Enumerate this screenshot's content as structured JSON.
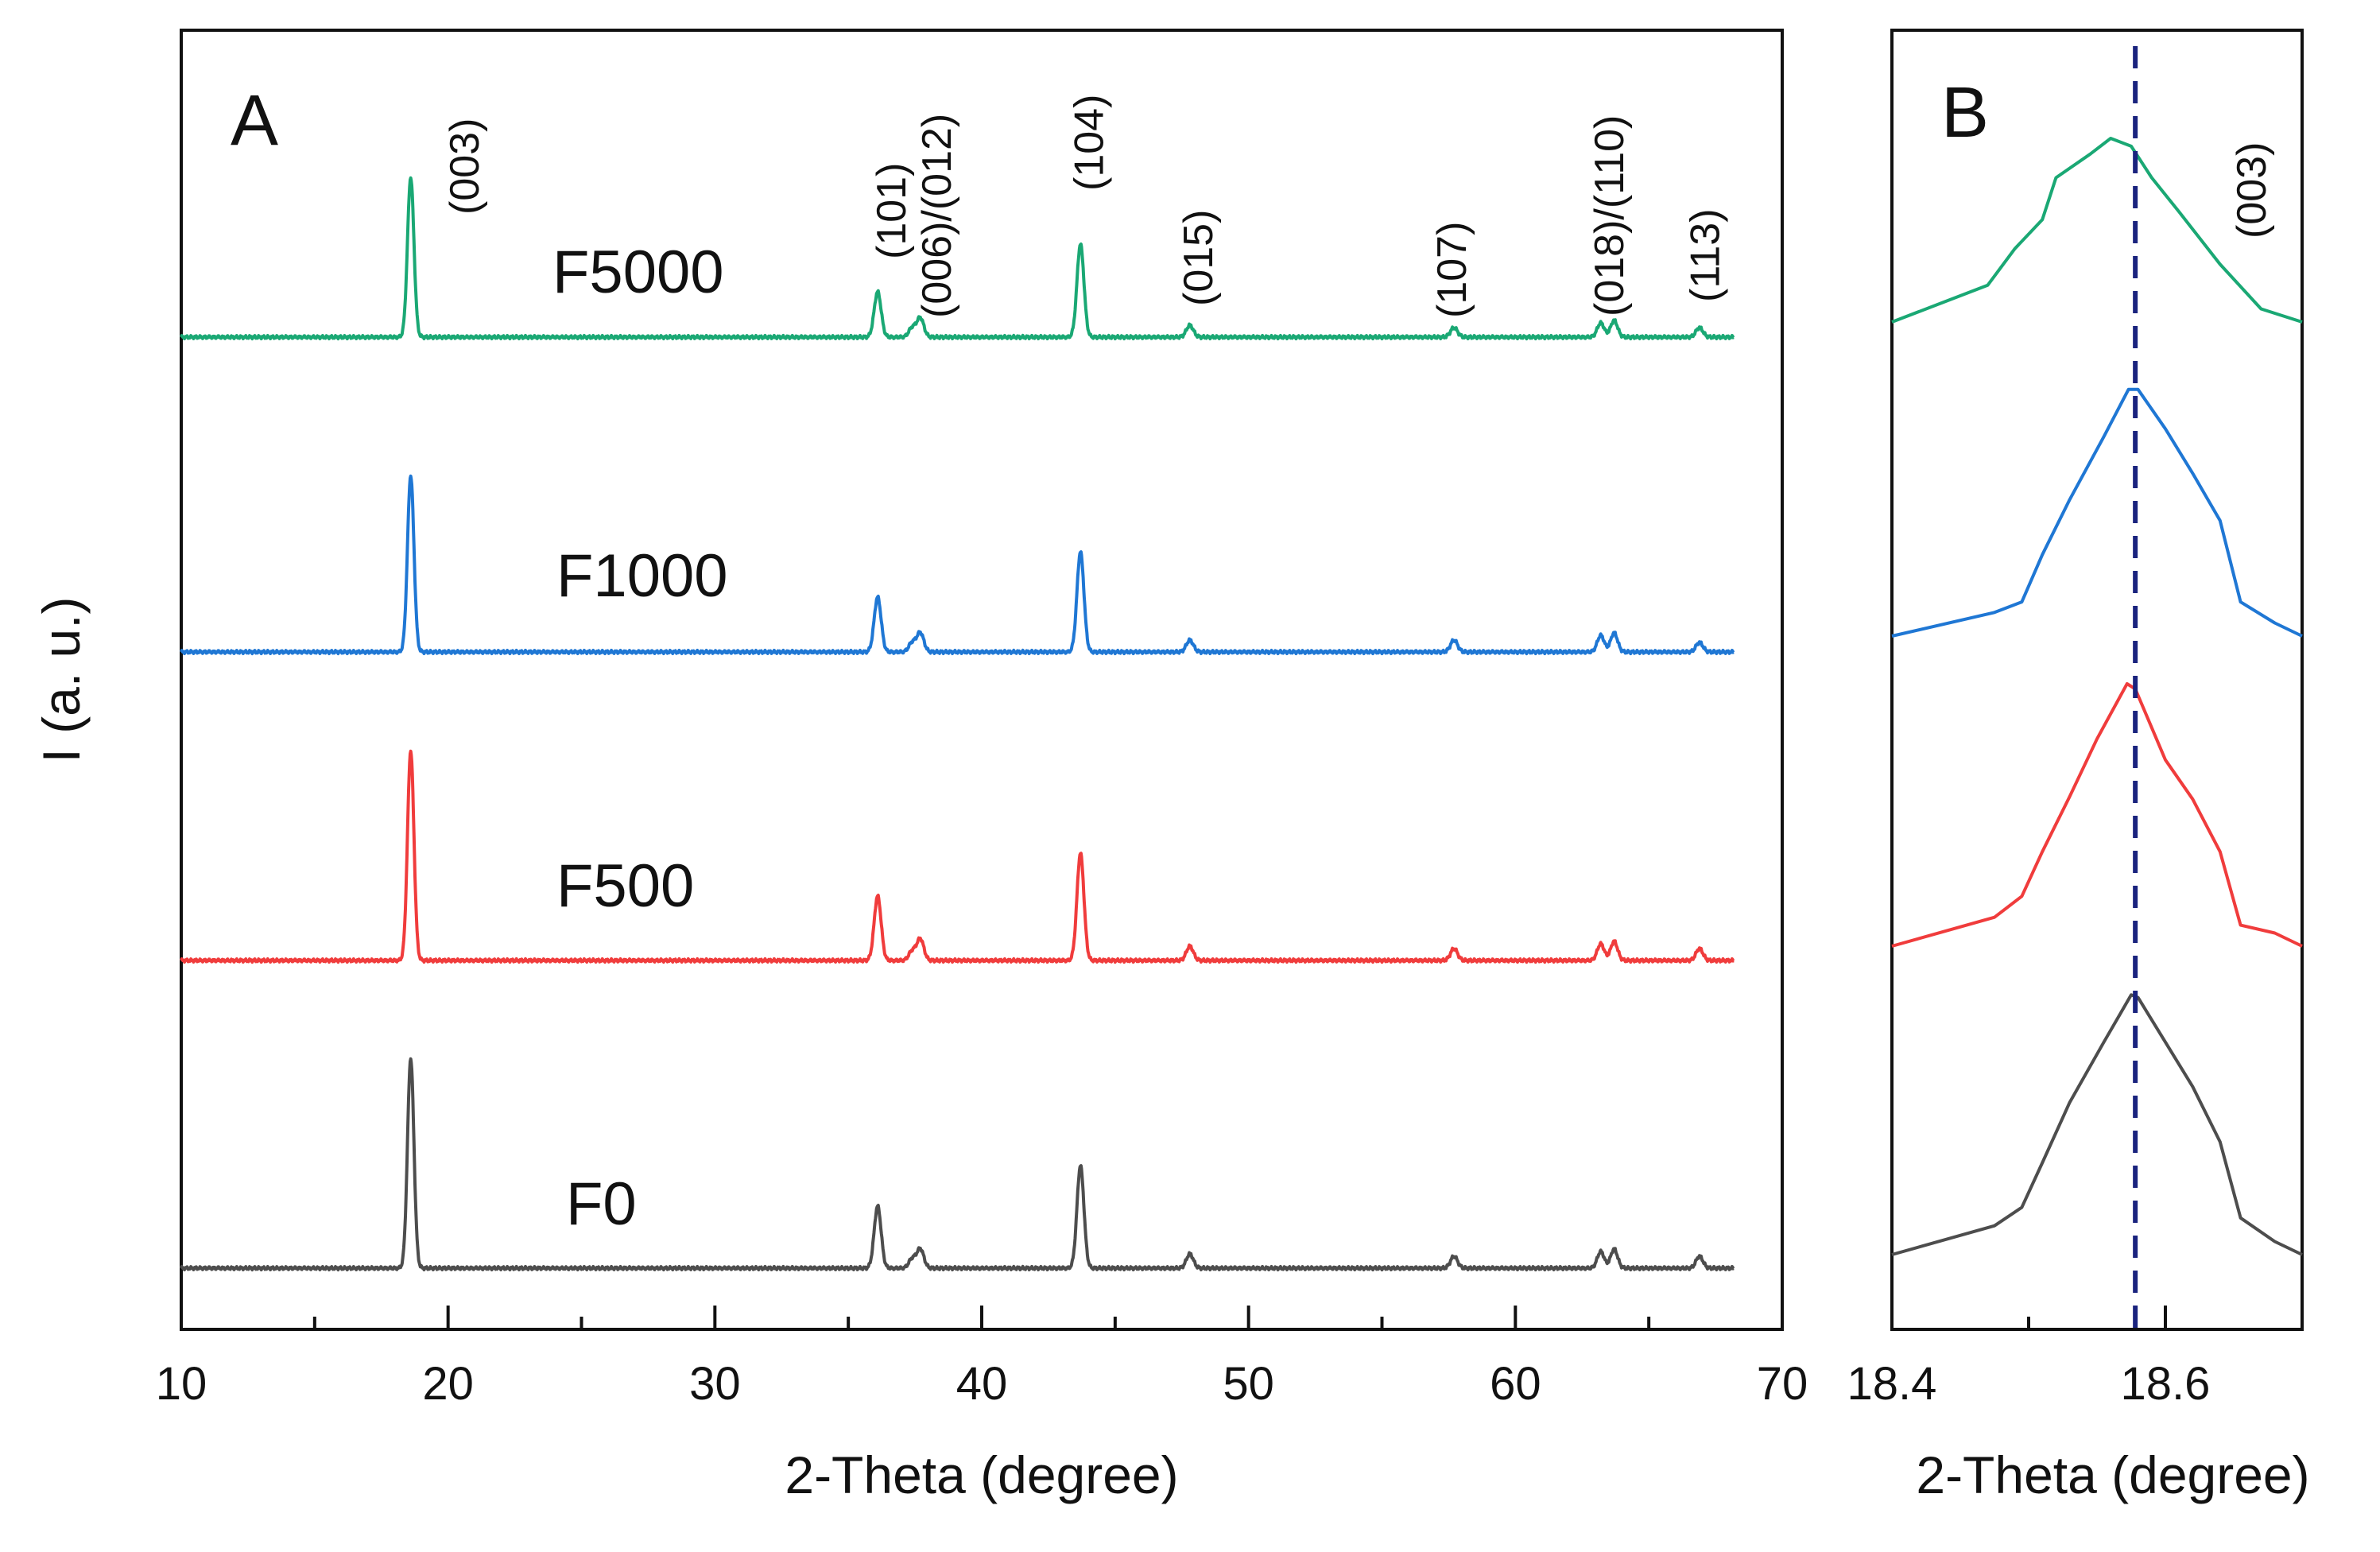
{
  "chart_data": [
    {
      "type": "line",
      "panel": "A",
      "xlabel": "2-Theta (degree)",
      "ylabel": "I (a. u.)",
      "xlim": [
        10,
        70
      ],
      "xticks": [
        10,
        20,
        30,
        40,
        50,
        60,
        70
      ],
      "xtick_labels": [
        "10",
        "20",
        "30",
        "40",
        "50",
        "60",
        "70"
      ],
      "x_range_data": [
        10,
        68.2
      ],
      "series": [
        {
          "name": "F0",
          "color": "#4d4d4d",
          "offset": 0.0
        },
        {
          "name": "F500",
          "color": "#f03c3c",
          "offset": 1.0
        },
        {
          "name": "F1000",
          "color": "#1f77d4",
          "offset": 2.0
        },
        {
          "name": "F5000",
          "color": "#1aa874",
          "offset": 3.0
        }
      ],
      "peaks": [
        {
          "pos": 18.6,
          "heights": [
            0.88,
            0.88,
            0.74,
            0.67
          ]
        },
        {
          "pos": 36.1,
          "heights": [
            0.26,
            0.27,
            0.23,
            0.19
          ]
        },
        {
          "pos": 37.4,
          "heights": [
            0.04,
            0.04,
            0.04,
            0.04
          ]
        },
        {
          "pos": 37.7,
          "heights": [
            0.08,
            0.09,
            0.08,
            0.08
          ]
        },
        {
          "pos": 43.7,
          "heights": [
            0.43,
            0.45,
            0.42,
            0.39
          ]
        },
        {
          "pos": 47.8,
          "heights": [
            0.06,
            0.06,
            0.05,
            0.05
          ]
        },
        {
          "pos": 57.7,
          "heights": [
            0.05,
            0.05,
            0.05,
            0.04
          ]
        },
        {
          "pos": 63.2,
          "heights": [
            0.07,
            0.07,
            0.07,
            0.06
          ]
        },
        {
          "pos": 63.7,
          "heights": [
            0.08,
            0.08,
            0.08,
            0.07
          ]
        },
        {
          "pos": 66.9,
          "heights": [
            0.05,
            0.05,
            0.04,
            0.04
          ]
        }
      ],
      "hkl_labels": [
        {
          "text": "(003)",
          "x": 20.6
        },
        {
          "text": "(101)",
          "x": 36.6
        },
        {
          "text": "(006)/(012)",
          "x": 38.3
        },
        {
          "text": "(104)",
          "x": 44.0
        },
        {
          "text": "(015)",
          "x": 48.1
        },
        {
          "text": "(107)",
          "x": 57.6
        },
        {
          "text": "(018)/(110)",
          "x": 63.5
        },
        {
          "text": "(113)",
          "x": 67.1
        }
      ]
    },
    {
      "type": "line",
      "panel": "B",
      "xlabel": "2-Theta (degree)",
      "xlim": [
        18.4,
        18.7
      ],
      "xticks": [
        18.4,
        18.6
      ],
      "xtick_labels": [
        "18.4",
        "18.6"
      ],
      "minor_xticks": [
        18.5
      ],
      "reference_line_x": 18.578,
      "hkl_label": "(003)",
      "series": [
        {
          "name": "F0",
          "color": "#4d4d4d",
          "offset": 0.0,
          "x": [
            18.4,
            18.475,
            18.495,
            18.51,
            18.53,
            18.555,
            18.575,
            18.58,
            18.6,
            18.62,
            18.64,
            18.655,
            18.68,
            18.7
          ],
          "y": [
            0.0,
            0.11,
            0.18,
            0.35,
            0.58,
            0.81,
            0.99,
            0.98,
            0.81,
            0.64,
            0.43,
            0.14,
            0.05,
            0.0
          ]
        },
        {
          "name": "F500",
          "color": "#f03c3c",
          "offset": 1.0,
          "x": [
            18.4,
            18.475,
            18.495,
            18.51,
            18.53,
            18.55,
            18.572,
            18.578,
            18.6,
            18.62,
            18.64,
            18.655,
            18.68,
            18.7
          ],
          "y": [
            0.0,
            0.11,
            0.19,
            0.36,
            0.57,
            0.79,
            1.0,
            0.98,
            0.71,
            0.56,
            0.36,
            0.08,
            0.05,
            0.0
          ]
        },
        {
          "name": "F1000",
          "color": "#1f77d4",
          "offset": 2.0,
          "x": [
            18.4,
            18.475,
            18.495,
            18.51,
            18.53,
            18.555,
            18.573,
            18.58,
            18.6,
            18.62,
            18.64,
            18.655,
            18.68,
            18.7
          ],
          "y": [
            0.0,
            0.09,
            0.13,
            0.31,
            0.52,
            0.76,
            0.94,
            0.94,
            0.79,
            0.62,
            0.44,
            0.13,
            0.05,
            0.0
          ]
        },
        {
          "name": "F5000",
          "color": "#1aa874",
          "offset": 3.0,
          "x": [
            18.4,
            18.47,
            18.49,
            18.51,
            18.52,
            18.545,
            18.56,
            18.575,
            18.59,
            18.61,
            18.64,
            18.67,
            18.7
          ],
          "y": [
            0.0,
            0.14,
            0.28,
            0.39,
            0.55,
            0.64,
            0.7,
            0.67,
            0.55,
            0.42,
            0.22,
            0.05,
            0.0
          ]
        }
      ]
    }
  ],
  "legend_labels": [
    "F5000",
    "F1000",
    "F500",
    "F0"
  ],
  "panel_letters": [
    "A",
    "B"
  ]
}
